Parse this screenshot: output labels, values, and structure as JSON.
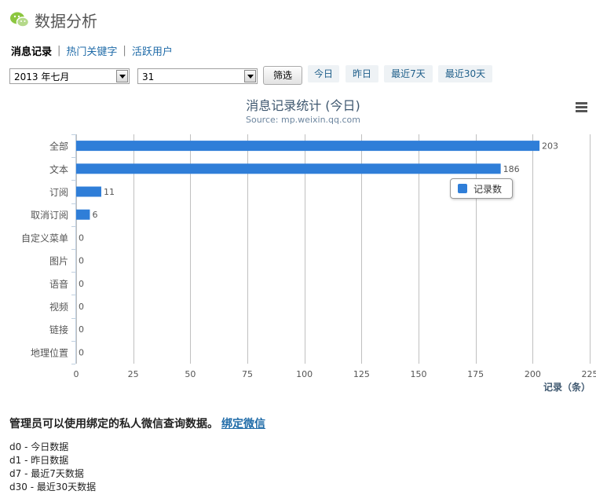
{
  "page": {
    "title": "数据分析"
  },
  "tabs": [
    {
      "label": "消息记录",
      "active": true
    },
    {
      "label": "热门关键字",
      "active": false
    },
    {
      "label": "活跃用户",
      "active": false
    }
  ],
  "tab_separator": "|",
  "filters": {
    "month_value": "2013 年七月",
    "day_value": "31",
    "filter_button": "筛选",
    "quick": [
      "今日",
      "昨日",
      "最近7天",
      "最近30天"
    ]
  },
  "chart_data": {
    "type": "bar",
    "orientation": "horizontal",
    "title": "消息记录统计 (今日)",
    "subtitle": "Source: mp.weixin.qq.com",
    "categories": [
      "全部",
      "文本",
      "订阅",
      "取消订阅",
      "自定义菜单",
      "图片",
      "语音",
      "视频",
      "链接",
      "地理位置"
    ],
    "series": [
      {
        "name": "记录数",
        "values": [
          203,
          186,
          11,
          6,
          0,
          0,
          0,
          0,
          0,
          0
        ],
        "color": "#2f7ed8"
      }
    ],
    "xlim": [
      0,
      225
    ],
    "xticks": [
      0,
      25,
      50,
      75,
      100,
      125,
      150,
      175,
      200,
      225
    ],
    "xlabel": "记录（条）",
    "grid": true,
    "legend_position": "right"
  },
  "footer": {
    "note": "管理员可以使用绑定的私人微信查询数据。",
    "bind_link": "绑定微信",
    "legend_items": [
      "d0 - 今日数据",
      "d1 - 昨日数据",
      "d7 - 最近7天数据",
      "d30 - 最近30天数据"
    ]
  },
  "colors": {
    "bar": "#2f7ed8",
    "link": "#1f6ba8",
    "title": "#3e576f"
  }
}
